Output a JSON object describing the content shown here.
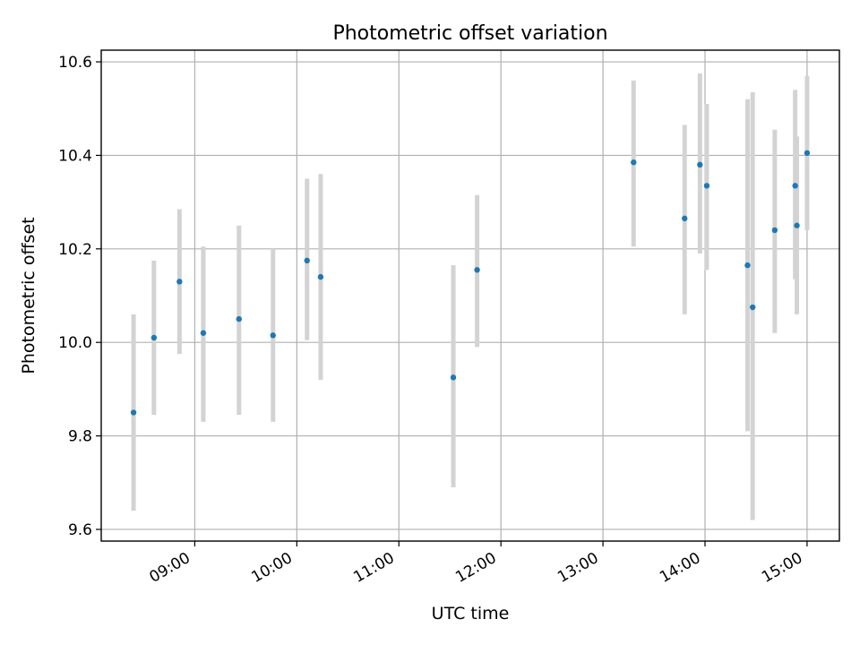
{
  "chart_data": {
    "type": "scatter",
    "title": "Photometric offset variation",
    "xlabel": "UTC time",
    "ylabel": "Photometric offset",
    "xlim": [
      "08:05",
      "15:19"
    ],
    "ylim": [
      9.575,
      10.625
    ],
    "xticks": [
      "09:00",
      "10:00",
      "11:00",
      "12:00",
      "13:00",
      "14:00",
      "15:00"
    ],
    "yticks": [
      "9.6",
      "9.8",
      "10.0",
      "10.2",
      "10.4",
      "10.6"
    ],
    "grid": true,
    "errorbar_color": "#d3d3d3",
    "marker_color": "#1f77b4",
    "points": [
      {
        "x": "08:24",
        "y": 9.85,
        "ylo": 9.64,
        "yhi": 10.06
      },
      {
        "x": "08:36",
        "y": 10.01,
        "ylo": 9.845,
        "yhi": 10.175
      },
      {
        "x": "08:51",
        "y": 10.13,
        "ylo": 9.975,
        "yhi": 10.285
      },
      {
        "x": "09:05",
        "y": 10.02,
        "ylo": 9.83,
        "yhi": 10.205
      },
      {
        "x": "09:26",
        "y": 10.05,
        "ylo": 9.845,
        "yhi": 10.25
      },
      {
        "x": "09:46",
        "y": 10.015,
        "ylo": 9.83,
        "yhi": 10.2
      },
      {
        "x": "10:06",
        "y": 10.175,
        "ylo": 10.005,
        "yhi": 10.35
      },
      {
        "x": "10:14",
        "y": 10.14,
        "ylo": 9.92,
        "yhi": 10.36
      },
      {
        "x": "11:32",
        "y": 9.925,
        "ylo": 9.69,
        "yhi": 10.165
      },
      {
        "x": "11:46",
        "y": 10.155,
        "ylo": 9.99,
        "yhi": 10.315
      },
      {
        "x": "13:18",
        "y": 10.385,
        "ylo": 10.205,
        "yhi": 10.56
      },
      {
        "x": "13:48",
        "y": 10.265,
        "ylo": 10.06,
        "yhi": 10.465
      },
      {
        "x": "13:57",
        "y": 10.38,
        "ylo": 10.19,
        "yhi": 10.575
      },
      {
        "x": "14:01",
        "y": 10.335,
        "ylo": 10.155,
        "yhi": 10.51
      },
      {
        "x": "14:25",
        "y": 10.165,
        "ylo": 9.81,
        "yhi": 10.52
      },
      {
        "x": "14:28",
        "y": 10.075,
        "ylo": 9.62,
        "yhi": 10.535
      },
      {
        "x": "14:41",
        "y": 10.24,
        "ylo": 10.02,
        "yhi": 10.455
      },
      {
        "x": "14:53",
        "y": 10.335,
        "ylo": 10.135,
        "yhi": 10.54
      },
      {
        "x": "14:54",
        "y": 10.25,
        "ylo": 10.06,
        "yhi": 10.44
      },
      {
        "x": "15:00",
        "y": 10.405,
        "ylo": 10.24,
        "yhi": 10.57
      }
    ]
  }
}
